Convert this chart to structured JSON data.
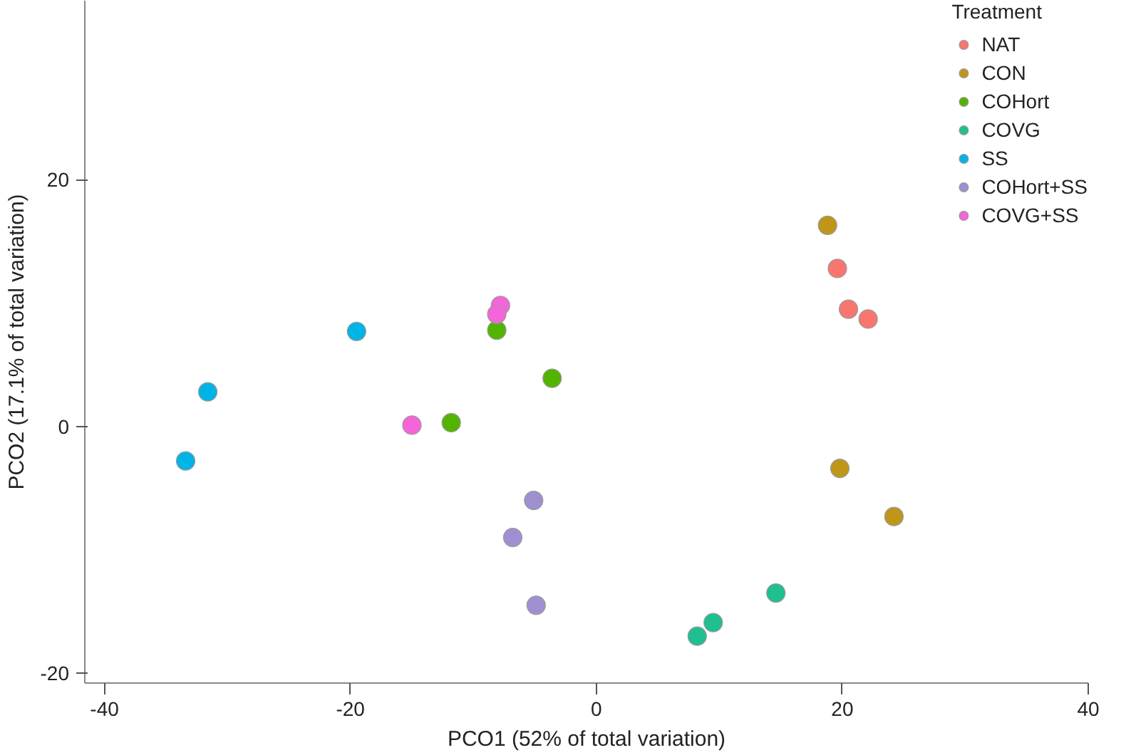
{
  "chart_data": {
    "type": "scatter",
    "xlabel": "PCO1 (52% of total variation)",
    "ylabel": "PCO2 (17.1% of total variation)",
    "legend_title": "Treatment",
    "xlim": [
      -41.6,
      40
    ],
    "ylim": [
      -20.8,
      34.5
    ],
    "xticks": [
      -40,
      -20,
      0,
      20,
      40
    ],
    "yticks": [
      -20,
      0,
      20
    ],
    "grid": false,
    "legend": "top right",
    "marker": "circle",
    "series": [
      {
        "name": "NAT",
        "color": "#f8766d",
        "x": [
          19.6,
          20.5,
          22.1
        ],
        "values": [
          12.8,
          9.5,
          8.7
        ]
      },
      {
        "name": "CON",
        "color": "#c0961a",
        "x": [
          18.8,
          19.8,
          24.2
        ],
        "values": [
          16.3,
          -3.4,
          -7.3
        ]
      },
      {
        "name": "COHort",
        "color": "#53b400",
        "x": [
          -8.1,
          -3.6,
          -11.8
        ],
        "values": [
          7.8,
          3.9,
          0.3
        ]
      },
      {
        "name": "COVG",
        "color": "#1fbf90",
        "x": [
          14.6,
          9.5,
          8.2
        ],
        "values": [
          -13.5,
          -15.9,
          -17.0
        ]
      },
      {
        "name": "SS",
        "color": "#00b4e8",
        "x": [
          -19.5,
          -31.6,
          -33.4
        ],
        "values": [
          7.7,
          2.8,
          -2.8
        ]
      },
      {
        "name": "COHort+SS",
        "color": "#a08fd0",
        "x": [
          -5.1,
          -6.8,
          -4.9
        ],
        "values": [
          -6.0,
          -9.0,
          -14.5
        ]
      },
      {
        "name": "COVG+SS",
        "color": "#f564d8",
        "x": [
          -15.0,
          -7.8,
          -8.1
        ],
        "values": [
          0.1,
          9.8,
          9.1
        ]
      }
    ]
  }
}
